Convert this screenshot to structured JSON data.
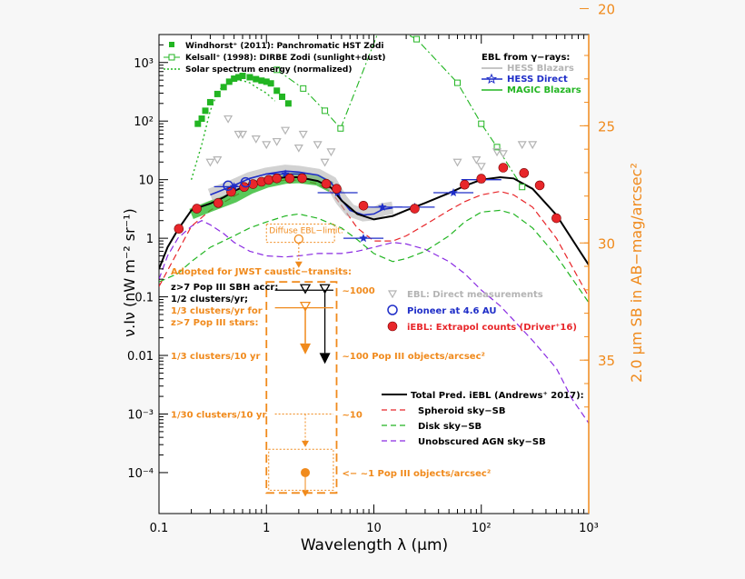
{
  "chart_data": {
    "type": "line",
    "xlabel": "Wavelength λ (μm)",
    "ylabel": "ν.Iν (nW m⁻² sr⁻¹)",
    "y2label": "2.0 μm SB in AB−mag/arcsec²",
    "xscale": "log",
    "yscale": "log",
    "xlim": [
      0.1,
      1000
    ],
    "ylim": [
      2e-05,
      3000
    ],
    "x_ticks": [
      0.1,
      1,
      10,
      100,
      1000
    ],
    "x_tick_labels": [
      "0.1",
      "1",
      "10",
      "10²",
      "10³"
    ],
    "y_ticks": [
      0.0001,
      0.001,
      0.01,
      0.1,
      1,
      10,
      100,
      1000
    ],
    "y_tick_labels": [
      "10⁻⁴",
      "10⁻³",
      "0.01",
      "0.1",
      "1",
      "10",
      "10²",
      "10³"
    ],
    "y2_ticks": [
      20,
      25,
      30,
      35
    ],
    "y2_tick_labels": [
      "20",
      "25",
      "30",
      "35"
    ],
    "colors": {
      "black": "#000000",
      "red": "#e8262a",
      "green": "#22b522",
      "purple": "#8a2be2",
      "blue": "#1f2ec8",
      "orange": "#f08a1c",
      "gray": "#b4b4b4"
    },
    "legend_top_left": [
      {
        "label": "Windhorst⁺ (2011): Panchromatic HST Zodi",
        "marker": "square-filled",
        "color": "#22b522"
      },
      {
        "label": "Kelsall⁺ (1998): DIRBE Zodi (sunlight+dust)",
        "marker": "square-open-dashdot",
        "color": "#22b522"
      },
      {
        "label": "Solar spectrum energy (normalized)",
        "marker": "dotted",
        "color": "#22b522"
      }
    ],
    "legend_top_right": {
      "title": "EBL from γ−rays:",
      "items": [
        {
          "label": "HESS Blazars",
          "color": "#b4b4b4"
        },
        {
          "label": "HESS Direct",
          "color": "#1f2ec8"
        },
        {
          "label": "MAGIC Blazars",
          "color": "#22b522"
        }
      ]
    },
    "legend_mid_right": [
      {
        "label": "EBL: Direct measurements",
        "color": "#b4b4b4",
        "marker": "triangle-down"
      },
      {
        "label": "Pioneer at 4.6 AU",
        "color": "#1f2ec8",
        "marker": "circle-open"
      },
      {
        "label": "iEBL: Extrapol counts (Driver⁺16)",
        "color": "#e8262a",
        "marker": "circle-filled"
      }
    ],
    "legend_bottom_right": [
      {
        "label": "Total Pred. iEBL (Andrews⁺ 2017):",
        "color": "#000000",
        "dash": "solid"
      },
      {
        "label": "Spheroid sky−SB",
        "color": "#e8262a",
        "dash": "dashed"
      },
      {
        "label": "Disk sky−SB",
        "color": "#22b522",
        "dash": "dashed"
      },
      {
        "label": "Unobscured AGN sky−SB",
        "color": "#8a2be2",
        "dash": "dashed"
      }
    ],
    "annotations": {
      "diffuse": "Diffuse EBL−limit:",
      "adopted": "Adopted for JWST caustic−transits:",
      "z7": "z>7 Pop III SBH accr:",
      "half": "1/2 clusters/yr;",
      "third": "1/3 clusters/yr for",
      "z7stars": "z>7 Pop III stars:",
      "tenyr": "1/3 clusters/10 yr",
      "thirtyyr": "1/30 clusters/10 yr",
      "n1000": "~1000",
      "n100": "~100 Pop III objects/arcsec²",
      "n10": "~10",
      "n1": "<− ~1 Pop III objects/arcsec²"
    },
    "series": [
      {
        "name": "Total Pred. iEBL (Andrews⁺ 2017):",
        "x": [
          0.1,
          0.12,
          0.15,
          0.2,
          0.25,
          0.3,
          0.4,
          0.5,
          0.7,
          1.0,
          1.5,
          2.0,
          3.0,
          4.0,
          5.0,
          7.0,
          10,
          15,
          20,
          30,
          50,
          70,
          100,
          150,
          200,
          300,
          500,
          1000
        ],
        "y": [
          0.3,
          0.7,
          1.4,
          3.0,
          3.5,
          3.9,
          5.0,
          6.4,
          8.5,
          10,
          11,
          11,
          9.5,
          7.3,
          4.4,
          2.6,
          2.1,
          2.4,
          3.0,
          4.0,
          5.9,
          7.8,
          10,
          11,
          10.5,
          7.0,
          2.5,
          0.35
        ]
      },
      {
        "name": "Spheroid sky−SB",
        "x": [
          0.1,
          0.15,
          0.2,
          0.3,
          0.5,
          0.7,
          1.0,
          1.5,
          2.0,
          3.0,
          4.0,
          5.0,
          7.0,
          10,
          15,
          20,
          30,
          50,
          70,
          100,
          150,
          200,
          300,
          500,
          1000
        ],
        "y": [
          0.15,
          0.6,
          1.6,
          3.0,
          5.2,
          7.3,
          8.8,
          9.8,
          9.8,
          8.5,
          6.2,
          3.6,
          1.5,
          0.9,
          0.9,
          1.1,
          1.7,
          3.0,
          4.2,
          5.5,
          6.3,
          5.5,
          3.4,
          1.0,
          0.1
        ]
      },
      {
        "name": "Disk sky−SB",
        "x": [
          0.1,
          0.15,
          0.2,
          0.3,
          0.5,
          0.7,
          1.0,
          1.5,
          2.0,
          3.0,
          5.0,
          7.0,
          10,
          15,
          20,
          30,
          50,
          70,
          100,
          150,
          200,
          300,
          500,
          1000
        ],
        "y": [
          0.18,
          0.25,
          0.4,
          0.7,
          1.1,
          1.5,
          1.9,
          2.4,
          2.6,
          2.2,
          1.5,
          0.95,
          0.55,
          0.4,
          0.45,
          0.6,
          1.1,
          1.9,
          2.8,
          3.0,
          2.6,
          1.5,
          0.5,
          0.08
        ]
      },
      {
        "name": "Unobscured AGN sky−SB",
        "x": [
          0.1,
          0.12,
          0.15,
          0.2,
          0.25,
          0.3,
          0.4,
          0.5,
          0.7,
          1.0,
          1.5,
          2.0,
          3.0,
          5.0,
          7.0,
          10,
          15,
          20,
          30,
          50,
          70,
          100,
          150,
          200,
          300,
          500,
          700,
          1000
        ],
        "y": [
          0.2,
          0.5,
          1.0,
          1.6,
          2.0,
          1.7,
          1.2,
          0.85,
          0.6,
          0.5,
          0.48,
          0.5,
          0.55,
          0.55,
          0.6,
          0.7,
          0.85,
          0.8,
          0.65,
          0.4,
          0.25,
          0.13,
          0.07,
          0.04,
          0.018,
          0.006,
          0.0018,
          0.0007
        ]
      },
      {
        "name": "MAGIC Blazars",
        "x": [
          0.2,
          0.3,
          0.5,
          0.7,
          1.0,
          1.5,
          2.0,
          3.0,
          4.0
        ],
        "y": [
          2.6,
          3.5,
          5.0,
          7.0,
          9.0,
          10.5,
          10.8,
          9.8,
          7.5
        ]
      },
      {
        "name": "HESS Direct",
        "x": [
          0.3,
          0.5,
          0.7,
          1.0,
          1.5,
          2.0,
          3.0,
          4.0,
          5.0,
          6.0,
          8.0,
          10,
          12,
          15
        ],
        "y": [
          5.5,
          8.0,
          10.5,
          12.5,
          14,
          13.5,
          12,
          9.0,
          4.5,
          3.0,
          2.5,
          2.6,
          3.1,
          3.3
        ]
      },
      {
        "name": "Windhorst⁺ (2011): Panchromatic HST Zodi",
        "x": [
          0.23,
          0.25,
          0.27,
          0.3,
          0.35,
          0.4,
          0.45,
          0.5,
          0.55,
          0.6,
          0.7,
          0.8,
          0.9,
          1.0,
          1.1,
          1.25,
          1.4,
          1.6
        ],
        "y": [
          90,
          110,
          150,
          210,
          290,
          380,
          470,
          530,
          560,
          590,
          560,
          520,
          490,
          470,
          440,
          330,
          260,
          200
        ]
      },
      {
        "name": "Kelsall⁺ (1998): DIRBE Zodi (sunlight+dust)",
        "x": [
          1.25,
          2.2,
          3.5,
          4.9,
          12,
          25,
          60,
          100,
          140,
          240
        ],
        "y": [
          750,
          360,
          150,
          75,
          5000,
          2500,
          450,
          90,
          36,
          7.5
        ]
      },
      {
        "name": "Solar spectrum energy (normalized)",
        "x": [
          0.2,
          0.25,
          0.3,
          0.35,
          0.4,
          0.45,
          0.5,
          0.55,
          0.6,
          0.7,
          0.8,
          1.0,
          1.2
        ],
        "y": [
          10,
          40,
          150,
          300,
          420,
          460,
          480,
          500,
          490,
          450,
          380,
          300,
          220
        ]
      },
      {
        "name": "iEBL: Extrapol counts (Driver⁺16)",
        "x": [
          0.153,
          0.225,
          0.356,
          0.47,
          0.62,
          0.75,
          0.9,
          1.05,
          1.25,
          1.65,
          2.15,
          3.6,
          4.5,
          8,
          24,
          70,
          100,
          160,
          250,
          350,
          500
        ],
        "y": [
          1.45,
          3.2,
          4.0,
          6.2,
          7.5,
          8.4,
          9.2,
          9.9,
          10.5,
          10.5,
          10.6,
          8.5,
          7.0,
          3.6,
          3.2,
          8.2,
          10.4,
          16.0,
          13.0,
          8.0,
          2.2
        ]
      },
      {
        "name": "Pioneer at 4.6 AU",
        "x": [
          0.44,
          0.64
        ],
        "y": [
          7.9,
          9.0
        ]
      },
      {
        "name": "EBL: Direct measurements",
        "x": [
          0.3,
          0.35,
          0.44,
          0.55,
          0.6,
          0.8,
          1.0,
          1.25,
          1.5,
          2.0,
          2.2,
          3.0,
          3.5,
          4.0,
          60,
          90,
          100,
          140,
          160,
          240,
          300
        ],
        "y": [
          20,
          22,
          110,
          60,
          60,
          50,
          40,
          45,
          70,
          35,
          60,
          40,
          20,
          30,
          20,
          22,
          17,
          30,
          28,
          40,
          40
        ]
      },
      {
        "name": "Diffuse EBL−limit:",
        "x": [
          2.0
        ],
        "y": [
          0.97
        ]
      },
      {
        "name": "Pop III SBH accr",
        "x": [
          2.3,
          3.5
        ],
        "y": [
          0.16,
          0.16
        ]
      },
      {
        "name": "z>7 Pop III stars",
        "x": [
          2.3
        ],
        "y": [
          0.03
        ]
      },
      {
        "name": "Pop III 1/30 clusters",
        "x": [
          2.3
        ],
        "y": [
          0.0001
        ]
      }
    ]
  }
}
